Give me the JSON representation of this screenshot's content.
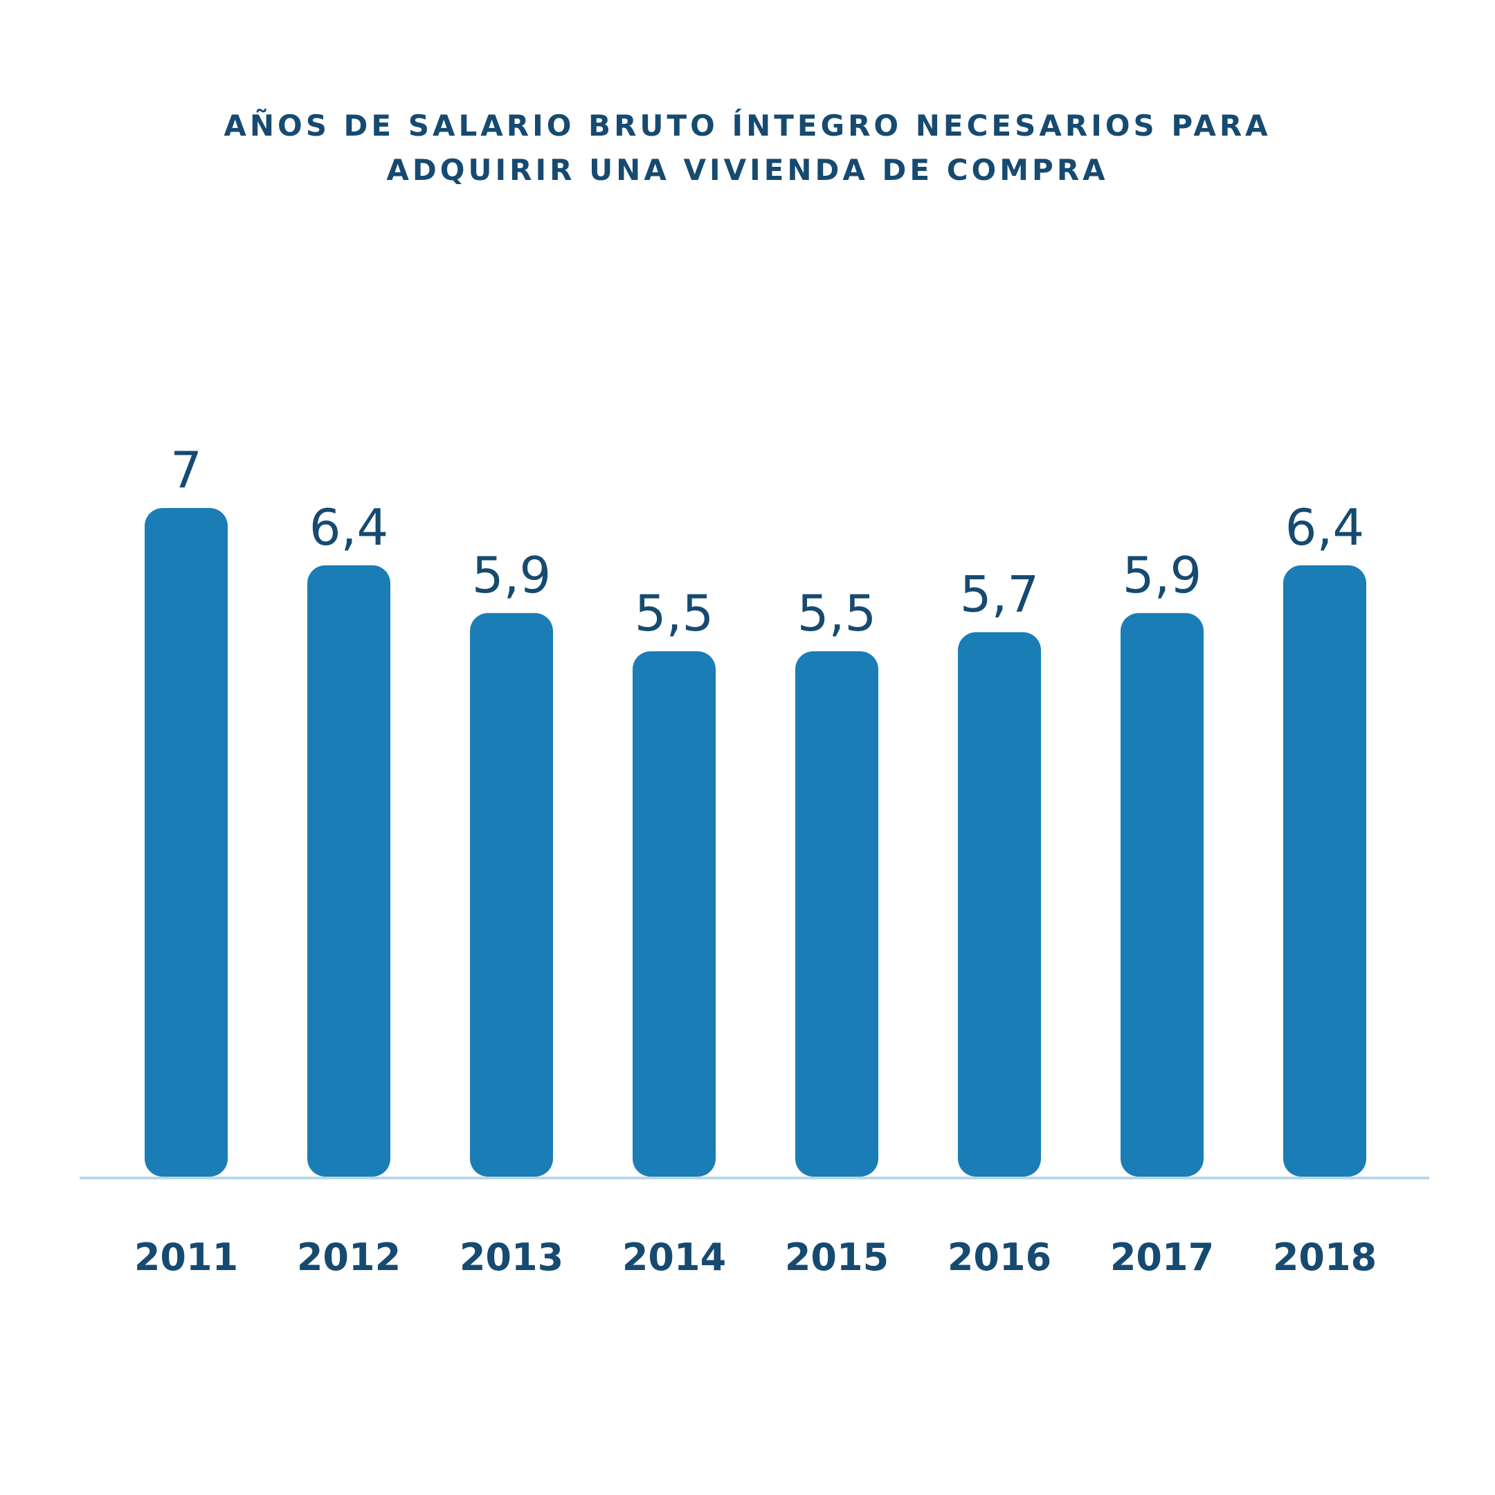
{
  "chart_data": {
    "type": "bar",
    "title_lines": [
      "AÑOS DE SALARIO BRUTO ÍNTEGRO NECESARIOS PARA",
      "ADQUIRIR UNA VIVIENDA DE COMPRA"
    ],
    "categories": [
      "2011",
      "2012",
      "2013",
      "2014",
      "2015",
      "2016",
      "2017",
      "2018"
    ],
    "values": [
      7,
      6.4,
      5.9,
      5.5,
      5.5,
      5.7,
      5.9,
      6.4
    ],
    "data_labels": [
      "7",
      "6,4",
      "5,9",
      "5,5",
      "5,5",
      "5,7",
      "5,9",
      "6,4"
    ],
    "xlabel": "",
    "ylabel": "",
    "grid": false,
    "legend": "none",
    "colors": {
      "bar": "#1a7db6",
      "text": "#164a70",
      "axis": "#b9d7e6"
    }
  }
}
